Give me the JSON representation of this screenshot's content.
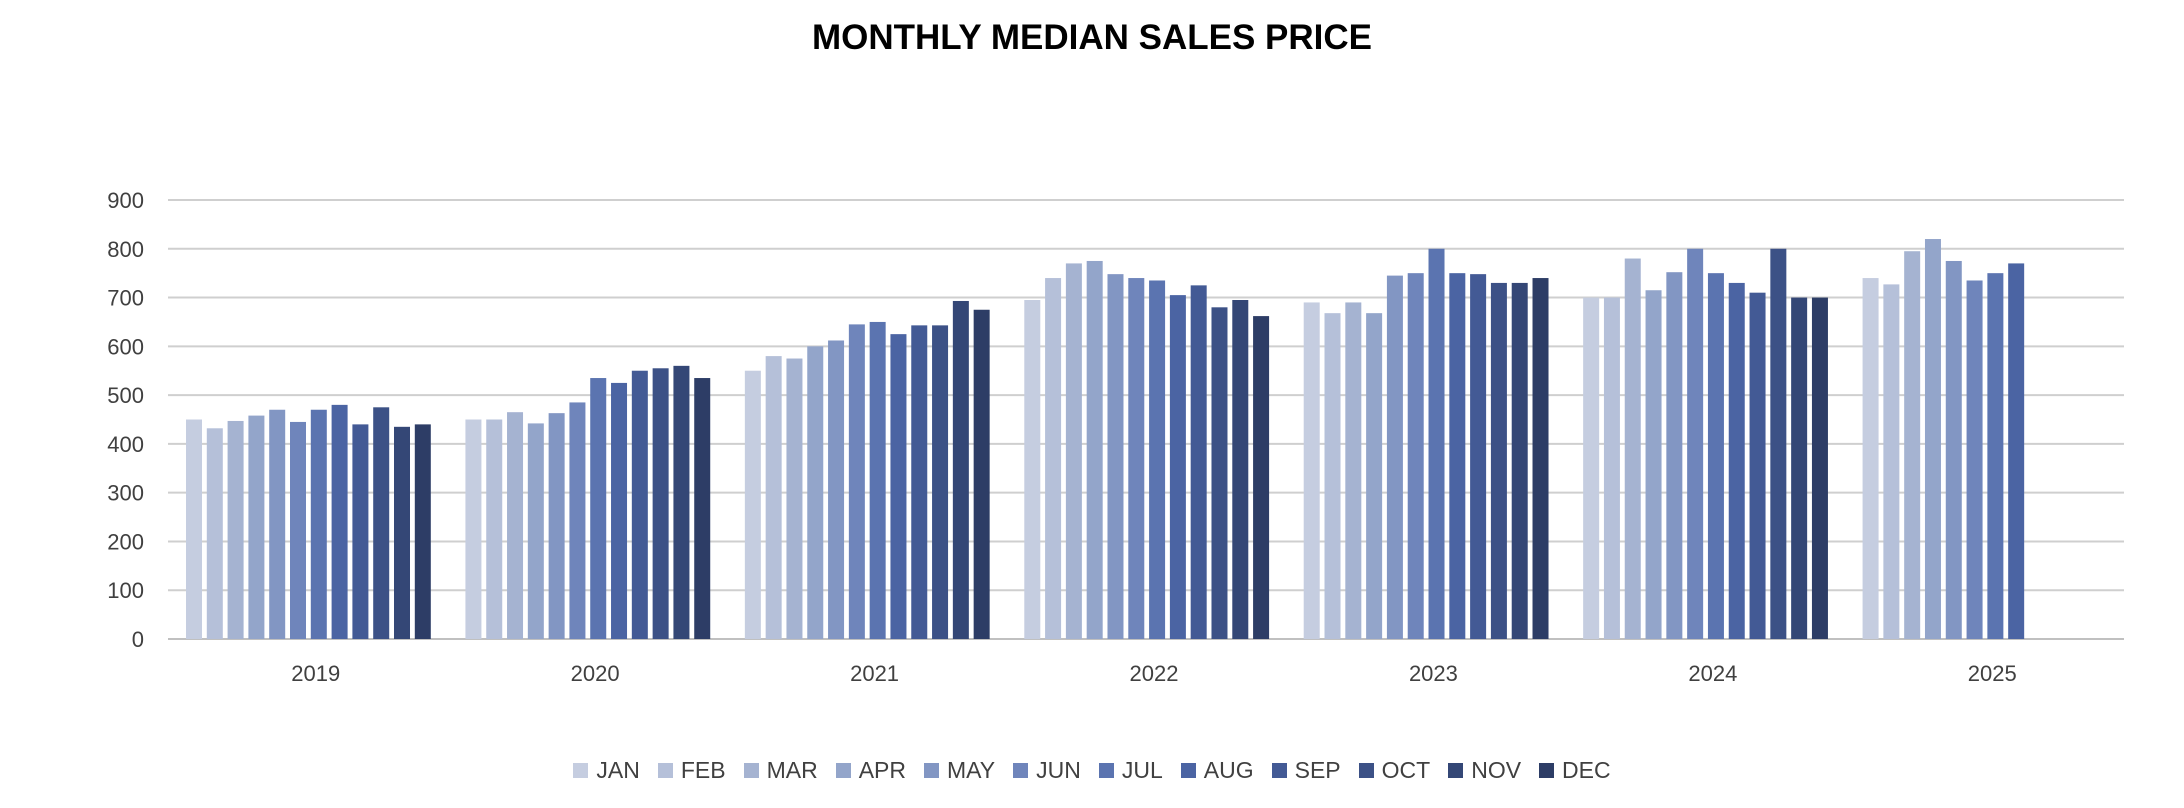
{
  "chart_data": {
    "type": "bar",
    "title": "MONTHLY MEDIAN SALES PRICE",
    "xlabel": "",
    "ylabel": "",
    "ylim": [
      0,
      900
    ],
    "yticks": [
      0,
      100,
      200,
      300,
      400,
      500,
      600,
      700,
      800,
      900
    ],
    "grid": true,
    "legend_position": "bottom",
    "categories": [
      "2019",
      "2020",
      "2021",
      "2022",
      "2023",
      "2024",
      "2025"
    ],
    "series": [
      {
        "name": "JAN",
        "color": "#c5cde0",
        "values": [
          450,
          450,
          550,
          695,
          690,
          700,
          740
        ]
      },
      {
        "name": "FEB",
        "color": "#b5c0d9",
        "values": [
          432,
          450,
          580,
          740,
          668,
          700,
          727
        ]
      },
      {
        "name": "MAR",
        "color": "#a5b3d1",
        "values": [
          447,
          465,
          575,
          770,
          690,
          780,
          795
        ]
      },
      {
        "name": "APR",
        "color": "#93a5ca",
        "values": [
          458,
          442,
          600,
          775,
          668,
          715,
          820
        ]
      },
      {
        "name": "MAY",
        "color": "#8296c3",
        "values": [
          470,
          463,
          612,
          748,
          745,
          752,
          775
        ]
      },
      {
        "name": "JUN",
        "color": "#6f85bb",
        "values": [
          445,
          485,
          645,
          740,
          750,
          800,
          735
        ]
      },
      {
        "name": "JUL",
        "color": "#5b74b0",
        "values": [
          470,
          535,
          650,
          735,
          800,
          750,
          750
        ]
      },
      {
        "name": "AUG",
        "color": "#4b64a3",
        "values": [
          480,
          525,
          625,
          705,
          750,
          730,
          770
        ]
      },
      {
        "name": "SEP",
        "color": "#435a95",
        "values": [
          440,
          550,
          643,
          725,
          748,
          710,
          null
        ]
      },
      {
        "name": "OCT",
        "color": "#3c5186",
        "values": [
          475,
          555,
          643,
          680,
          730,
          800,
          null
        ]
      },
      {
        "name": "NOV",
        "color": "#344776",
        "values": [
          435,
          560,
          693,
          695,
          730,
          700,
          null
        ]
      },
      {
        "name": "DEC",
        "color": "#2d3d66",
        "values": [
          440,
          535,
          675,
          662,
          740,
          700,
          null
        ]
      }
    ],
    "colors": {
      "grid": "#cfcfcf",
      "axis": "#c0c0c0",
      "tick_text": "#404040"
    }
  }
}
